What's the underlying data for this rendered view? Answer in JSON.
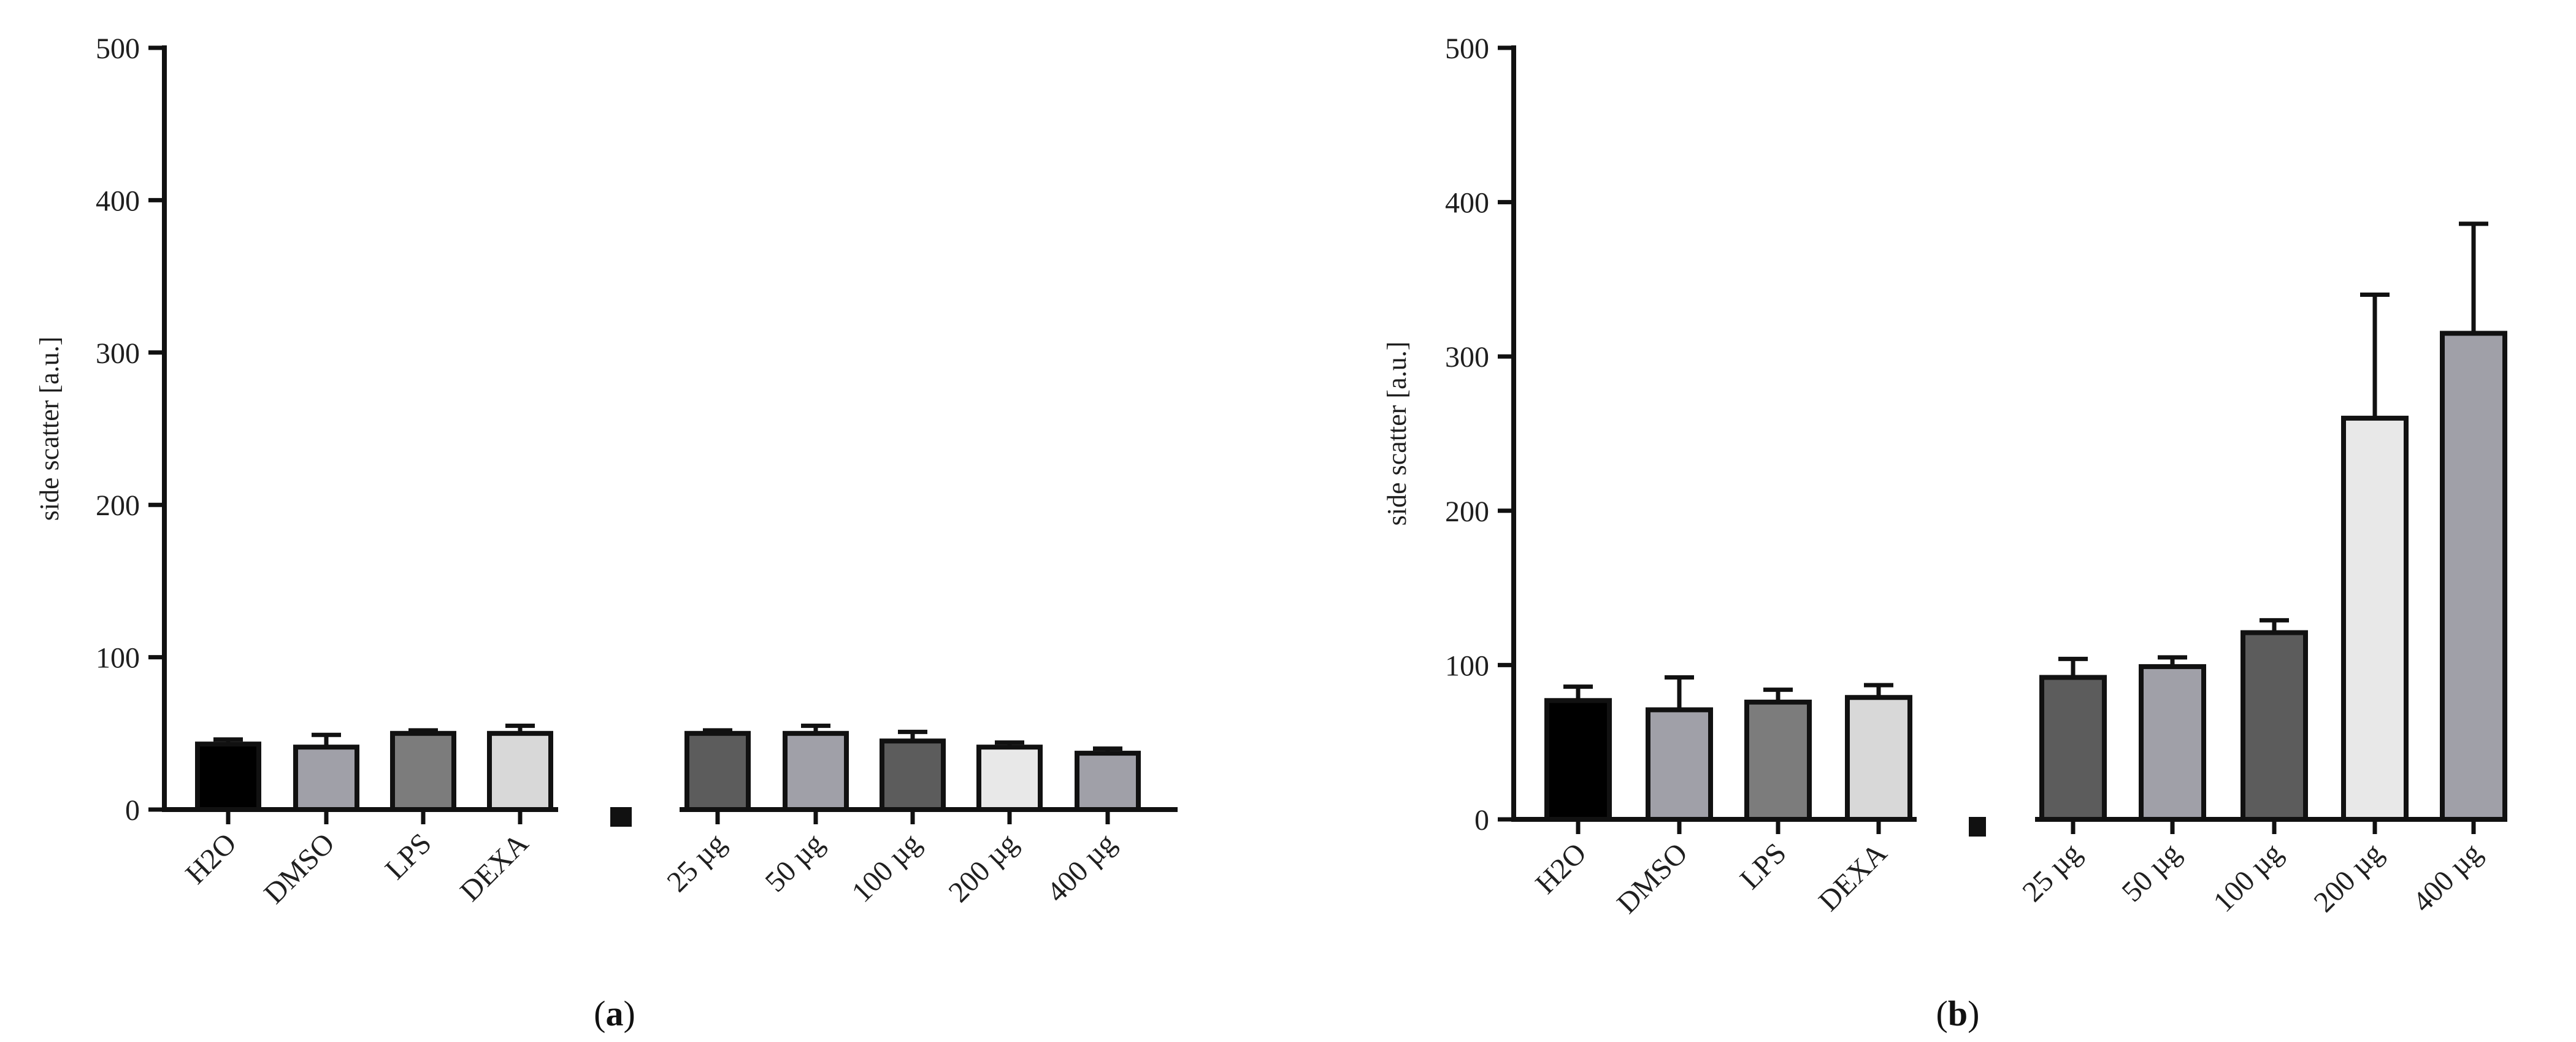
{
  "chart_data": [
    {
      "type": "bar",
      "panel_label": "a",
      "title": "",
      "xlabel": "",
      "ylabel": "side scatter [a.u.]",
      "ylim": [
        0,
        500
      ],
      "yticks": [
        0,
        100,
        200,
        300,
        400,
        500
      ],
      "grid": false,
      "legend": "none",
      "categories": [
        "H2O",
        "DMSO",
        "LPS",
        "DEXA",
        "25 µg",
        "50 µg",
        "100 µg",
        "200 µg",
        "400 µg"
      ],
      "values": [
        43,
        41,
        50,
        50,
        50,
        50,
        45,
        41,
        37
      ],
      "error": [
        3,
        8,
        2,
        5,
        2,
        5,
        6,
        3,
        3
      ],
      "colors": [
        "#000000",
        "#a0a0a8",
        "#7c7c7c",
        "#d8d8d8",
        "#5c5c5c",
        "#a0a0a8",
        "#5c5c5c",
        "#e8e8e8",
        "#a0a0a8"
      ]
    },
    {
      "type": "bar",
      "panel_label": "b",
      "title": "",
      "xlabel": "",
      "ylabel": "side scatter [a.u.]",
      "ylim": [
        0,
        500
      ],
      "yticks": [
        0,
        100,
        200,
        300,
        400,
        500
      ],
      "grid": false,
      "legend": "none",
      "categories": [
        "H2O",
        "DMSO",
        "LPS",
        "DEXA",
        "25 µg",
        "50 µg",
        "100 µg",
        "200 µg",
        "400 µg"
      ],
      "values": [
        77,
        71,
        76,
        79,
        92,
        99,
        121,
        260,
        315
      ],
      "error": [
        9,
        21,
        8,
        8,
        12,
        6,
        8,
        80,
        71
      ],
      "colors": [
        "#000000",
        "#a0a0a8",
        "#7c7c7c",
        "#d8d8d8",
        "#5c5c5c",
        "#a0a0a8",
        "#5c5c5c",
        "#e8e8e8",
        "#a0a0a8"
      ]
    }
  ]
}
